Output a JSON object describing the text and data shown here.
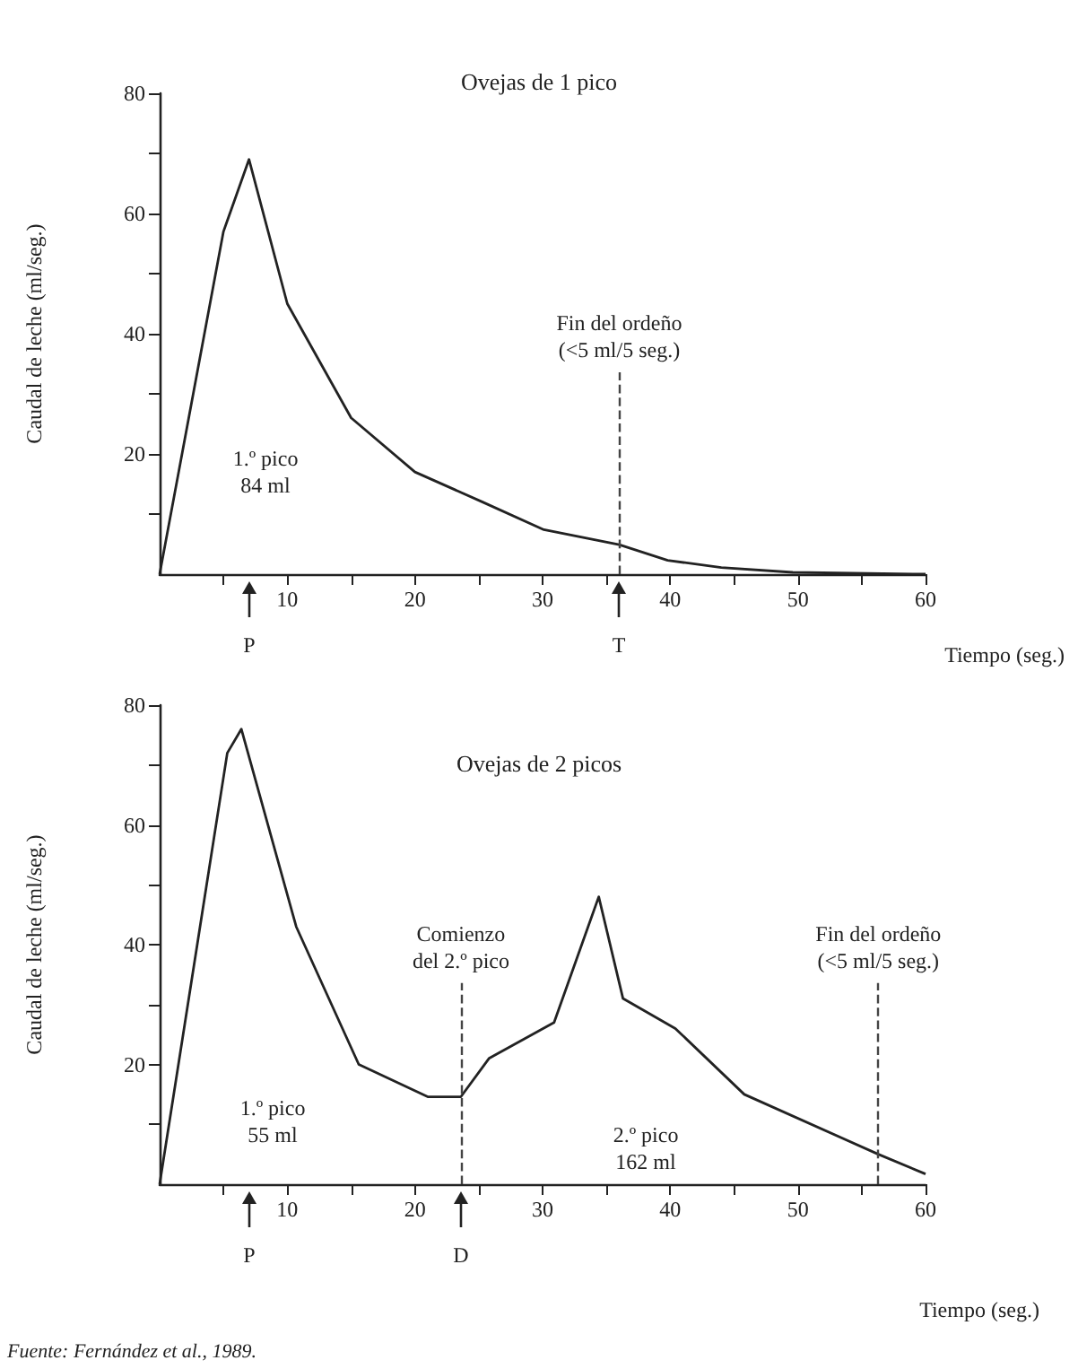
{
  "chart_data": [
    {
      "type": "line",
      "title": "Ovejas de 1 pico",
      "xlabel": "Tiempo (seg.)",
      "ylabel": "Caudal de leche (ml/seg.)",
      "color": "#222222",
      "x": [
        0,
        5,
        7,
        10,
        15,
        20,
        25.3,
        30.1,
        36,
        39.8,
        44,
        49.6,
        60
      ],
      "values": [
        0,
        57,
        69,
        45,
        26,
        17,
        12,
        7.4,
        4.9,
        2.3,
        1.1,
        0.3,
        0
      ],
      "xlim": [
        0,
        60
      ],
      "ylim": [
        0,
        80
      ],
      "xticks": [
        {
          "value": 5,
          "label": null
        },
        10,
        {
          "value": 15,
          "label": null
        },
        20,
        {
          "value": 25,
          "label": null
        },
        30,
        {
          "value": 35,
          "label": null
        },
        40,
        {
          "value": 45,
          "label": null
        },
        50,
        {
          "value": 55,
          "label": null
        },
        60
      ],
      "yticks": [
        {
          "value": 10,
          "label": null
        },
        20,
        {
          "value": 30,
          "label": null
        },
        40,
        {
          "value": 50,
          "label": null
        },
        60,
        {
          "value": 70,
          "label": null
        },
        80
      ],
      "ref_lines": [
        {
          "axis": "x",
          "value": 36,
          "label": "Fin del ordeño\n(<5 ml/5 seg.)",
          "line_style": "dashed"
        }
      ],
      "annotations": [
        "1.º pico\n84 ml",
        "P",
        "T"
      ]
    },
    {
      "type": "line",
      "title": "Ovejas de 2 picos",
      "xlabel": "Tiempo (seg.)",
      "ylabel": "Caudal de leche (ml/seg.)",
      "color": "#222222",
      "x": [
        0,
        5.3,
        6.4,
        10.7,
        15.6,
        21,
        23.6,
        25.8,
        30.9,
        34.4,
        36.3,
        40.4,
        45.8,
        56.3,
        60
      ],
      "values": [
        0,
        72,
        76,
        43,
        20,
        14.6,
        14.6,
        21,
        27,
        48,
        31,
        26,
        15,
        5,
        1.7
      ],
      "xlim": [
        0,
        60
      ],
      "ylim": [
        0,
        80
      ],
      "xticks": [
        {
          "value": 5,
          "label": null
        },
        10,
        {
          "value": 15,
          "label": null
        },
        20,
        {
          "value": 25,
          "label": null
        },
        30,
        {
          "value": 35,
          "label": null
        },
        40,
        {
          "value": 45,
          "label": null
        },
        50,
        {
          "value": 55,
          "label": null
        },
        60
      ],
      "yticks": [
        {
          "value": 10,
          "label": null
        },
        20,
        {
          "value": 30,
          "label": null
        },
        40,
        {
          "value": 50,
          "label": null
        },
        60,
        {
          "value": 70,
          "label": null
        },
        80
      ],
      "ref_lines": [
        {
          "axis": "x",
          "value": 23.6,
          "label": "Comienzo\ndel 2.º pico",
          "line_style": "dashed"
        },
        {
          "axis": "x",
          "value": 56.3,
          "label": "Fin del ordeño\n(<5 ml/5 seg.)",
          "line_style": "dashed"
        }
      ],
      "annotations": [
        "1.º pico\n55 ml",
        "2.º pico\n162 ml",
        "P",
        "D",
        "Fuente: Fernández et al., 1989."
      ]
    }
  ]
}
